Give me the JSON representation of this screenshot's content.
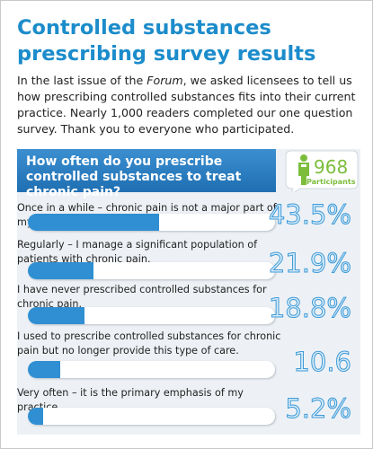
{
  "header": {
    "title": "Controlled substances prescribing survey results",
    "intro": [
      "In the last issue of the ",
      "Forum",
      ", we asked licensees to tell us how prescribing controlled substances fits into their current practice. Nearly 1,000 readers completed our one question survey. Thank you to everyone who participated."
    ]
  },
  "chart_data": {
    "type": "bar",
    "title": "How often do you prescribe controlled substances to treat chronic pain?",
    "participants": 968,
    "participants_label": "Participants",
    "categories": [
      "Once in a while – chronic pain is not a major part of my practice.",
      "Regularly – I manage a significant population of patients with chronic pain.",
      "I have never prescribed controlled substances for chronic pain.",
      "I used to prescribe controlled substances for chronic pain but no longer provide this type of care.",
      "Very often – it is the primary emphasis of my practice."
    ],
    "values": [
      43.5,
      21.9,
      18.8,
      10.6,
      5.2
    ],
    "value_labels": [
      "43.5%",
      "21.9%",
      "18.8%",
      "10.6",
      "5.2%"
    ],
    "color": "#2f8fd2"
  }
}
